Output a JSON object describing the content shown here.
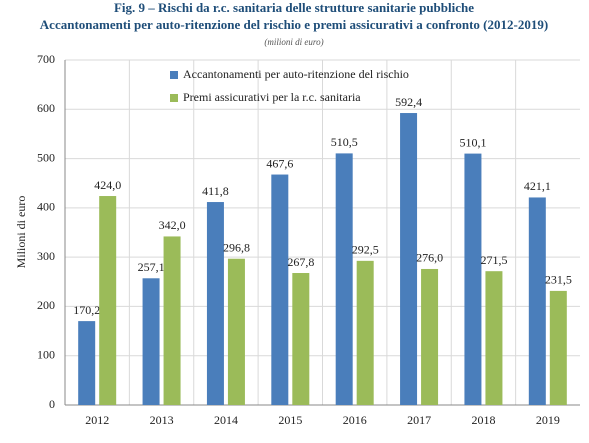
{
  "chart_data": {
    "type": "bar",
    "title": "Fig. 9 – Rischi da r.c. sanitaria delle strutture sanitarie pubbliche",
    "subtitle": "Accantonamenti per auto-ritenzione del rischio e premi assicurativi a confronto (2012-2019)",
    "note": "(milioni di euro)",
    "y_label": "Milioni di euro",
    "categories": [
      "2012",
      "2013",
      "2014",
      "2015",
      "2016",
      "2017",
      "2018",
      "2019"
    ],
    "series": [
      {
        "name": "Accantonamenti per auto-ritenzione del rischio",
        "color": "#4a7ebb",
        "values": [
          170.2,
          257.1,
          411.8,
          467.6,
          510.5,
          592.4,
          510.1,
          421.1
        ],
        "value_labels": [
          "170,2",
          "257,1",
          "411,8",
          "467,6",
          "510,5",
          "592,4",
          "510,1",
          "421,1"
        ]
      },
      {
        "name": "Premi assicurativi per la r.c. sanitaria",
        "color": "#9bbb59",
        "values": [
          424.0,
          342.0,
          296.8,
          267.8,
          292.5,
          276.0,
          271.5,
          231.5
        ],
        "value_labels": [
          "424,0",
          "342,0",
          "296,8",
          "267,8",
          "292,5",
          "276,0",
          "271,5",
          "231,5"
        ]
      }
    ],
    "ylim": [
      0,
      700
    ],
    "yticks": [
      0,
      100,
      200,
      300,
      400,
      500,
      600,
      700
    ],
    "grid": true,
    "legend": "top-left"
  }
}
